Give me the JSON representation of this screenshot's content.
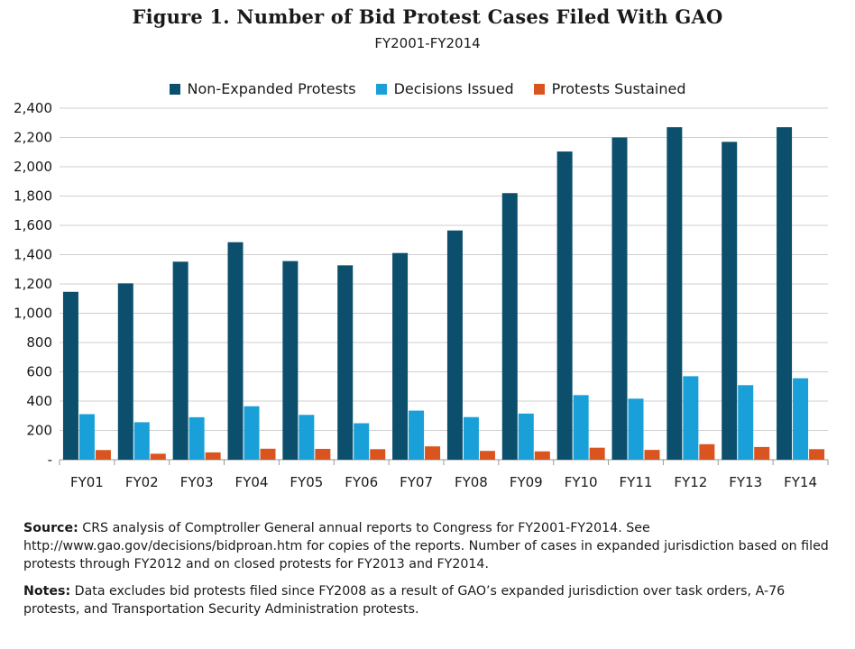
{
  "header": {
    "title": "Figure 1. Number of Bid Protest Cases Filed With GAO",
    "subtitle": "FY2001-FY2014"
  },
  "legend": [
    {
      "label": "Non-Expanded Protests",
      "color": "#0b4f6c"
    },
    {
      "label": "Decisions Issued",
      "color": "#1aa0d8"
    },
    {
      "label": "Protests Sustained",
      "color": "#d9541e"
    }
  ],
  "chart_data": {
    "type": "bar",
    "title": "Figure 1. Number of Bid Protest Cases Filed With GAO",
    "subtitle": "FY2001-FY2014",
    "categories": [
      "FY01",
      "FY02",
      "FY03",
      "FY04",
      "FY05",
      "FY06",
      "FY07",
      "FY08",
      "FY09",
      "FY10",
      "FY11",
      "FY12",
      "FY13",
      "FY14"
    ],
    "series": [
      {
        "name": "Non-Expanded Protests",
        "color": "#0b4f6c",
        "values": [
          1146,
          1204,
          1352,
          1485,
          1356,
          1327,
          1411,
          1565,
          1820,
          2104,
          2200,
          2270,
          2170,
          2270
        ]
      },
      {
        "name": "Decisions Issued",
        "color": "#1aa0d8",
        "values": [
          311,
          256,
          290,
          365,
          306,
          249,
          335,
          291,
          315,
          441,
          417,
          570,
          509,
          556
        ]
      },
      {
        "name": "Protests Sustained",
        "color": "#d9541e",
        "values": [
          66,
          41,
          50,
          75,
          74,
          72,
          91,
          60,
          57,
          82,
          67,
          106,
          87,
          72
        ]
      }
    ],
    "ylim": [
      0,
      2400
    ],
    "yticks": [
      0,
      200,
      400,
      600,
      800,
      1000,
      1200,
      1400,
      1600,
      1800,
      2000,
      2200,
      2400
    ],
    "ytick_labels": [
      "-",
      "200",
      "400",
      "600",
      "800",
      "1,000",
      "1,200",
      "1,400",
      "1,600",
      "1,800",
      "2,000",
      "2,200",
      "2,400"
    ],
    "grid": true,
    "legend_position": "top"
  },
  "notes": {
    "source_label": "Source:",
    "source_text": " CRS analysis of Comptroller General annual reports to Congress for FY2001-FY2014. See http://www.gao.gov/decisions/bidproan.htm for copies of the reports. Number of cases in expanded jurisdiction based on filed protests through FY2012 and on closed protests for FY2013 and FY2014.",
    "notes_label": "Notes:",
    "notes_text": " Data excludes bid protests filed since FY2008 as a result of GAO’s expanded jurisdiction over task orders, A-76 protests, and Transportation Security Administration protests."
  }
}
